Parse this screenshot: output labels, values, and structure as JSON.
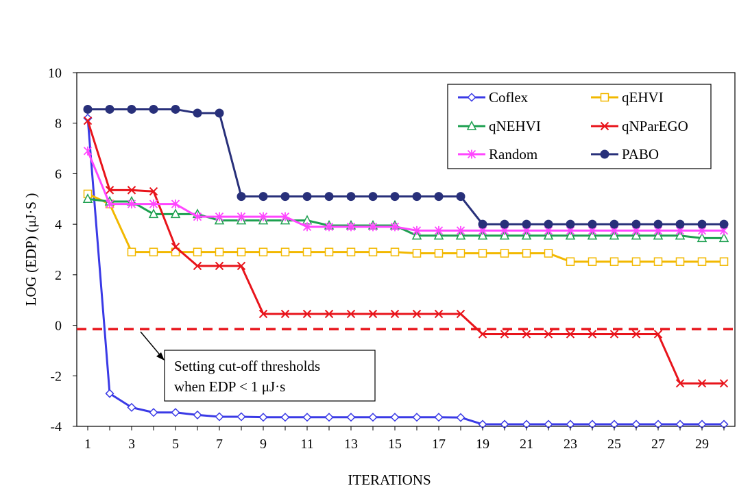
{
  "chart_data": {
    "type": "line",
    "xlabel": "ITERATIONS",
    "ylabel": "LOG (EDP) (μJ·S )",
    "x": [
      1,
      2,
      3,
      4,
      5,
      6,
      7,
      8,
      9,
      10,
      11,
      12,
      13,
      14,
      15,
      16,
      17,
      18,
      19,
      20,
      21,
      22,
      23,
      24,
      25,
      26,
      27,
      28,
      29,
      30
    ],
    "x_tick_labels": [
      "1",
      "3",
      "5",
      "7",
      "9",
      "11",
      "13",
      "15",
      "17",
      "19",
      "21",
      "23",
      "25",
      "27",
      "29"
    ],
    "y_tick_labels": [
      "10",
      "8",
      "6",
      "4",
      "2",
      "0",
      "-2",
      "-4"
    ],
    "ylim": [
      -4,
      10
    ],
    "xlim": [
      0.5,
      30.5
    ],
    "grid": false,
    "legend_position": "top-right",
    "series": [
      {
        "name": "Coflex",
        "color": "#3a3ae6",
        "marker": "diamond-open",
        "values": [
          8.2,
          -2.7,
          -3.25,
          -3.45,
          -3.45,
          -3.55,
          -3.62,
          -3.62,
          -3.64,
          -3.64,
          -3.64,
          -3.64,
          -3.64,
          -3.64,
          -3.64,
          -3.64,
          -3.64,
          -3.65,
          -3.92,
          -3.92,
          -3.92,
          -3.92,
          -3.92,
          -3.92,
          -3.92,
          -3.92,
          -3.92,
          -3.92,
          -3.92,
          -3.92
        ]
      },
      {
        "name": "qEHVI",
        "color": "#f2b800",
        "marker": "square-open",
        "values": [
          5.2,
          4.8,
          2.9,
          2.9,
          2.9,
          2.9,
          2.9,
          2.9,
          2.9,
          2.9,
          2.9,
          2.9,
          2.9,
          2.9,
          2.9,
          2.85,
          2.85,
          2.85,
          2.85,
          2.85,
          2.85,
          2.85,
          2.52,
          2.52,
          2.52,
          2.52,
          2.52,
          2.52,
          2.52,
          2.52
        ]
      },
      {
        "name": "qNEHVI",
        "color": "#1ea050",
        "marker": "triangle-open",
        "values": [
          5.0,
          4.9,
          4.9,
          4.4,
          4.4,
          4.4,
          4.15,
          4.15,
          4.15,
          4.15,
          4.15,
          3.95,
          3.95,
          3.95,
          3.95,
          3.55,
          3.55,
          3.55,
          3.55,
          3.55,
          3.55,
          3.55,
          3.55,
          3.55,
          3.55,
          3.55,
          3.55,
          3.55,
          3.45,
          3.45
        ]
      },
      {
        "name": "qNParEGO",
        "color": "#e8141b",
        "marker": "x",
        "values": [
          8.1,
          5.35,
          5.35,
          5.3,
          3.1,
          2.35,
          2.35,
          2.35,
          0.45,
          0.45,
          0.45,
          0.45,
          0.45,
          0.45,
          0.45,
          0.45,
          0.45,
          0.45,
          -0.35,
          -0.35,
          -0.35,
          -0.35,
          -0.35,
          -0.35,
          -0.35,
          -0.35,
          -0.35,
          -2.3,
          -2.3,
          -2.3
        ]
      },
      {
        "name": "Random",
        "color": "#ff46ff",
        "marker": "asterisk",
        "values": [
          6.9,
          4.8,
          4.8,
          4.8,
          4.8,
          4.3,
          4.3,
          4.3,
          4.3,
          4.3,
          3.9,
          3.9,
          3.9,
          3.9,
          3.9,
          3.75,
          3.75,
          3.75,
          3.75,
          3.75,
          3.75,
          3.75,
          3.75,
          3.75,
          3.75,
          3.75,
          3.75,
          3.75,
          3.75,
          3.75
        ]
      },
      {
        "name": "PABO",
        "color": "#28307a",
        "marker": "circle-filled",
        "values": [
          8.55,
          8.55,
          8.55,
          8.55,
          8.55,
          8.4,
          8.4,
          5.1,
          5.1,
          5.1,
          5.1,
          5.1,
          5.1,
          5.1,
          5.1,
          5.1,
          5.1,
          5.1,
          4.0,
          4.0,
          4.0,
          4.0,
          4.0,
          4.0,
          4.0,
          4.0,
          4.0,
          4.0,
          4.0,
          4.0
        ]
      }
    ],
    "threshold_line": {
      "y": -0.15,
      "color": "#e8141b",
      "style": "dashed"
    },
    "annotation": {
      "lines": [
        "Setting cut-off thresholds",
        "when EDP < 1 μJ·s"
      ]
    }
  }
}
